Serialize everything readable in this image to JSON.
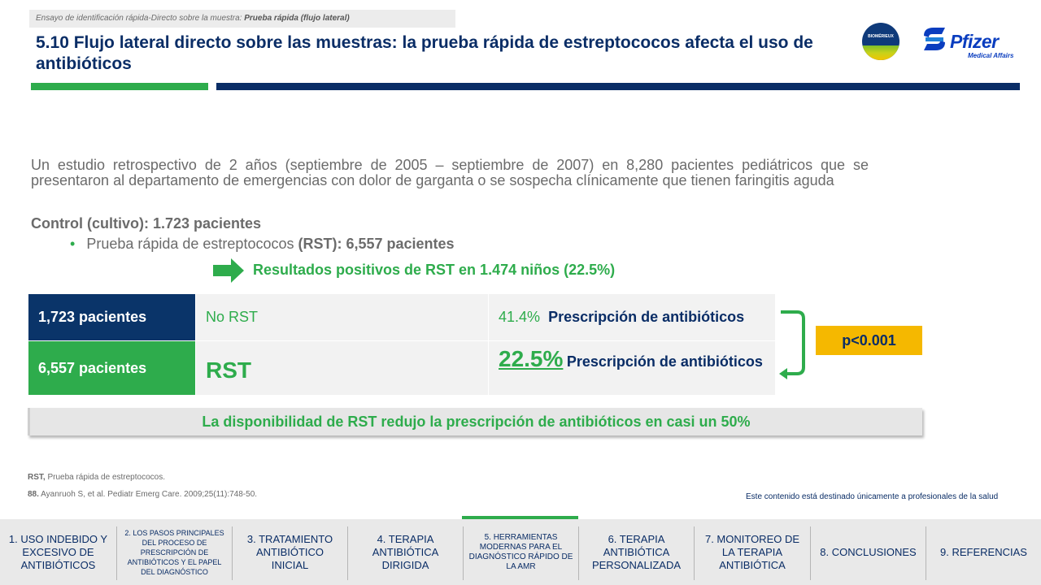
{
  "header": {
    "breadcrumb_prefix": "Ensayo de identificación rápida-Directo sobre la muestra:",
    "breadcrumb_bold": "Prueba rápida (flujo lateral)",
    "title": "5.10 Flujo lateral directo sobre las muestras:  la prueba rápida de estreptococos afecta el uso de antibióticos",
    "logo_biomerieux": "BIOMÉRIEUX",
    "logo_pfizer": "Pfizer",
    "logo_pfizer_sub": "Medical Affairs"
  },
  "body": {
    "intro": "Un estudio retrospectivo de 2 años (septiembre de 2005 – septiembre de 2007) en 8,280 pacientes pediátricos que se presentaron al departamento de emergencias  con dolor de garganta o se sospecha clínicamente que tienen faringitis aguda",
    "control": "Control (cultivo): 1.723 pacientes",
    "bullet_text": "Prueba rápida de estreptococos",
    "bullet_bold": "(RST): 6,557 pacientes",
    "positive_results": "Resultados positivos de RST en 1.474 niños  (22.5%)"
  },
  "table": {
    "row1": {
      "patients": "1,723 pacientes",
      "test": "No RST",
      "pct": "41.4%",
      "rx": "Prescripción de antibióticos"
    },
    "row2": {
      "patients": "6,557 pacientes",
      "test": "RST",
      "pct": "22.5%",
      "rx": "Prescripción de antibióticos"
    }
  },
  "pvalue": "p<0.001",
  "conclusion": "La disponibilidad de RST redujo la prescripción de antibióticos en casi un 50%",
  "footer": {
    "abbr_bold": "RST,",
    "abbr_text": "Prueba rápida de estreptococos.",
    "ref_num": "88.",
    "ref_text": "Ayanruoh S, et al. Pediatr Emerg Care. 2009;25(11):748-50.",
    "disclaimer": "Este contenido está destinado únicamente a profesionales de la salud"
  },
  "nav": {
    "items": [
      {
        "label": "1. USO INDEBIDO Y EXCESIVO DE ANTIBIÓTICOS"
      },
      {
        "label": "2. LOS PASOS PRINCIPALES DEL PROCESO DE PRESCRIPCIÓN DE ANTIBIÓTICOS Y EL PAPEL DEL DIAGNÓSTICO"
      },
      {
        "label": "3. TRATAMIENTO ANTIBIÓTICO INICIAL"
      },
      {
        "label": "4. TERAPIA ANTIBIÓTICA DIRIGIDA"
      },
      {
        "label": "5. HERRAMIENTAS MODERNAS PARA EL DIAGNÓSTICO RÁPIDO DE LA AMR"
      },
      {
        "label": "6. TERAPIA ANTIBIÓTICA PERSONALIZADA"
      },
      {
        "label": "7. MONITOREO DE LA TERAPIA ANTIBIÓTICA"
      },
      {
        "label": "8. CONCLUSIONES"
      },
      {
        "label": "9. REFERENCIAS"
      }
    ],
    "active_index": 4
  },
  "colors": {
    "navy": "#0a2d66",
    "green": "#2eac4c",
    "gold": "#f5b800",
    "gray_text": "#6b6b6b"
  }
}
